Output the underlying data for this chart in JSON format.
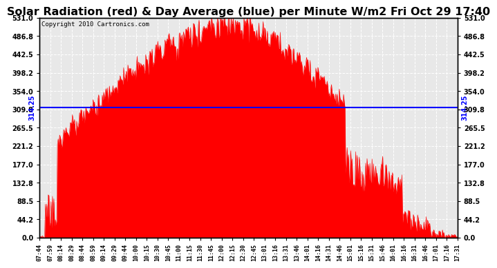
{
  "title": "Solar Radiation (red) & Day Average (blue) per Minute W/m2 Fri Oct 29 17:40",
  "copyright": "Copyright 2010 Cartronics.com",
  "day_average": 314.25,
  "y_max": 531.0,
  "y_min": 0.0,
  "y_ticks": [
    0.0,
    44.2,
    88.5,
    132.8,
    177.0,
    221.2,
    265.5,
    309.8,
    354.0,
    398.2,
    442.5,
    486.8,
    531.0
  ],
  "x_tick_labels": [
    "07:44",
    "07:59",
    "08:14",
    "08:29",
    "08:44",
    "08:59",
    "09:14",
    "09:29",
    "09:44",
    "10:00",
    "10:15",
    "10:30",
    "10:45",
    "11:00",
    "11:15",
    "11:30",
    "11:45",
    "12:00",
    "12:15",
    "12:30",
    "12:45",
    "13:01",
    "13:16",
    "13:31",
    "13:46",
    "14:01",
    "14:16",
    "14:31",
    "14:46",
    "15:01",
    "15:16",
    "15:31",
    "15:46",
    "16:01",
    "16:16",
    "16:31",
    "16:46",
    "17:01",
    "17:16",
    "17:31"
  ],
  "bar_color": "#ff0000",
  "line_color": "#0000ff",
  "bg_color": "#ffffff",
  "grid_color": "#ffffff",
  "plot_bg": "#e8e8e8",
  "title_fontsize": 11.5,
  "copyright_fontsize": 6.5,
  "avg_label_fontsize": 7,
  "tick_fontsize": 7,
  "x_tick_fontsize": 6
}
